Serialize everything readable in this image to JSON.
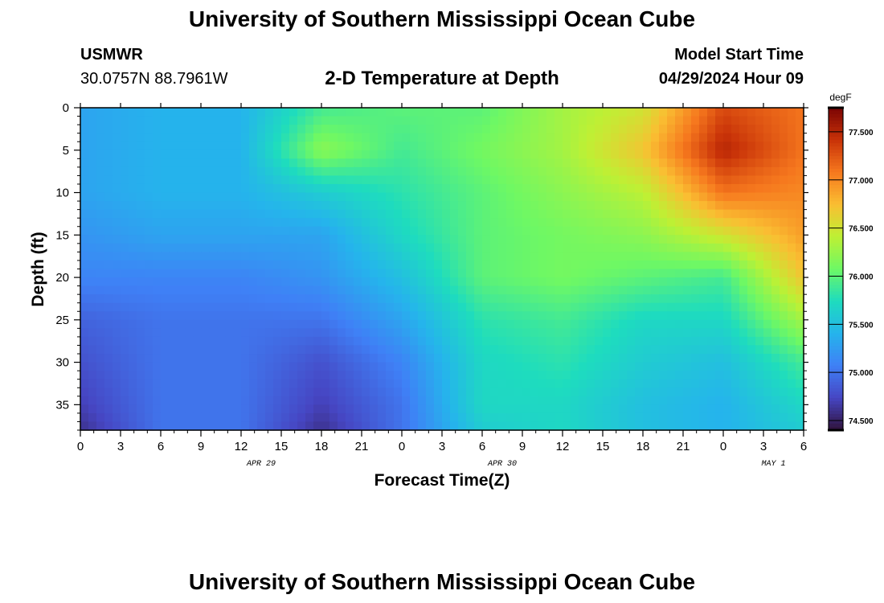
{
  "header": {
    "title": "University of Southern Mississippi Ocean Cube",
    "station": "USMWR",
    "coords": "30.0757N  88.7961W",
    "chart_title": "2-D Temperature at Depth",
    "model_label": "Model Start Time",
    "model_time": "04/29/2024 Hour 09"
  },
  "footer": {
    "title": "University of Southern Mississippi Ocean Cube"
  },
  "colorbar": {
    "unit": "degF",
    "ticks": [
      "74.500",
      "75.000",
      "75.500",
      "76.000",
      "76.500",
      "77.000",
      "77.500"
    ],
    "tick_values": [
      74.5,
      75.0,
      75.5,
      76.0,
      76.5,
      77.0,
      77.5
    ],
    "range": [
      74.4,
      77.75
    ]
  },
  "chart_data": {
    "type": "heatmap",
    "title": "2-D Temperature at Depth",
    "xlabel": "Forecast Time(Z)",
    "ylabel": "Depth (ft)",
    "x_ticks": [
      "0",
      "3",
      "6",
      "9",
      "12",
      "15",
      "18",
      "21",
      "0",
      "3",
      "6",
      "9",
      "12",
      "15",
      "18",
      "21",
      "0",
      "3",
      "6"
    ],
    "date_labels": [
      {
        "label": "APR 29",
        "hour": 18
      },
      {
        "label": "APR 30",
        "hour": 42
      },
      {
        "label": "MAY 1",
        "hour": 69
      }
    ],
    "xlim": [
      0,
      54
    ],
    "y_ticks": [
      "0",
      "5",
      "10",
      "15",
      "20",
      "25",
      "30",
      "35"
    ],
    "ylim": [
      38,
      0
    ],
    "units": "degF",
    "grid": false,
    "hours": [
      0,
      6,
      12,
      18,
      24,
      30,
      36,
      42,
      48,
      54
    ],
    "depths": [
      0,
      5,
      10,
      15,
      20,
      25,
      30,
      35,
      38
    ],
    "values": [
      [
        75.3,
        75.4,
        75.4,
        75.9,
        76.0,
        76.0,
        76.3,
        76.5,
        77.3,
        77.1
      ],
      [
        75.3,
        75.4,
        75.4,
        76.2,
        75.9,
        76.1,
        76.3,
        76.7,
        77.5,
        77.1
      ],
      [
        75.3,
        75.4,
        75.4,
        75.6,
        75.8,
        76.0,
        76.2,
        76.4,
        77.1,
        77.0
      ],
      [
        75.2,
        75.3,
        75.3,
        75.3,
        75.7,
        76.0,
        76.1,
        76.2,
        76.5,
        76.9
      ],
      [
        75.1,
        75.1,
        75.1,
        75.2,
        75.5,
        76.0,
        76.1,
        76.0,
        75.9,
        76.7
      ],
      [
        74.9,
        75.0,
        75.0,
        75.0,
        75.3,
        75.8,
        75.9,
        75.7,
        75.7,
        76.3
      ],
      [
        74.8,
        75.0,
        75.0,
        74.8,
        75.1,
        75.7,
        75.8,
        75.6,
        75.5,
        75.9
      ],
      [
        74.7,
        75.0,
        75.0,
        74.7,
        75.0,
        75.7,
        75.7,
        75.5,
        75.4,
        75.7
      ],
      [
        74.6,
        75.0,
        75.0,
        74.6,
        75.0,
        75.6,
        75.7,
        75.5,
        75.4,
        75.6
      ]
    ]
  }
}
